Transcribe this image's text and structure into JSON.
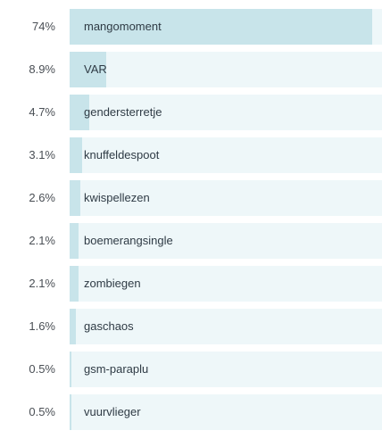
{
  "chart_data": {
    "type": "bar",
    "orientation": "horizontal",
    "categories": [
      "mangomoment",
      "VAR",
      "gendersterretje",
      "knuffeldespoot",
      "kwispellezen",
      "boemerangsingle",
      "zombiegen",
      "gaschaos",
      "gsm-paraplu",
      "vuurvlieger"
    ],
    "values": [
      74,
      8.9,
      4.7,
      3.1,
      2.6,
      2.1,
      2.1,
      1.6,
      0.5,
      0.5
    ],
    "value_labels": [
      "74%",
      "8.9%",
      "4.7%",
      "3.1%",
      "2.6%",
      "2.1%",
      "2.1%",
      "1.6%",
      "0.5%",
      "0.5%"
    ],
    "xlim": [
      0,
      76.5
    ],
    "grid": false,
    "legend": "none",
    "bar_color": "#c8e4ea",
    "track_color": "#eef7f9"
  }
}
